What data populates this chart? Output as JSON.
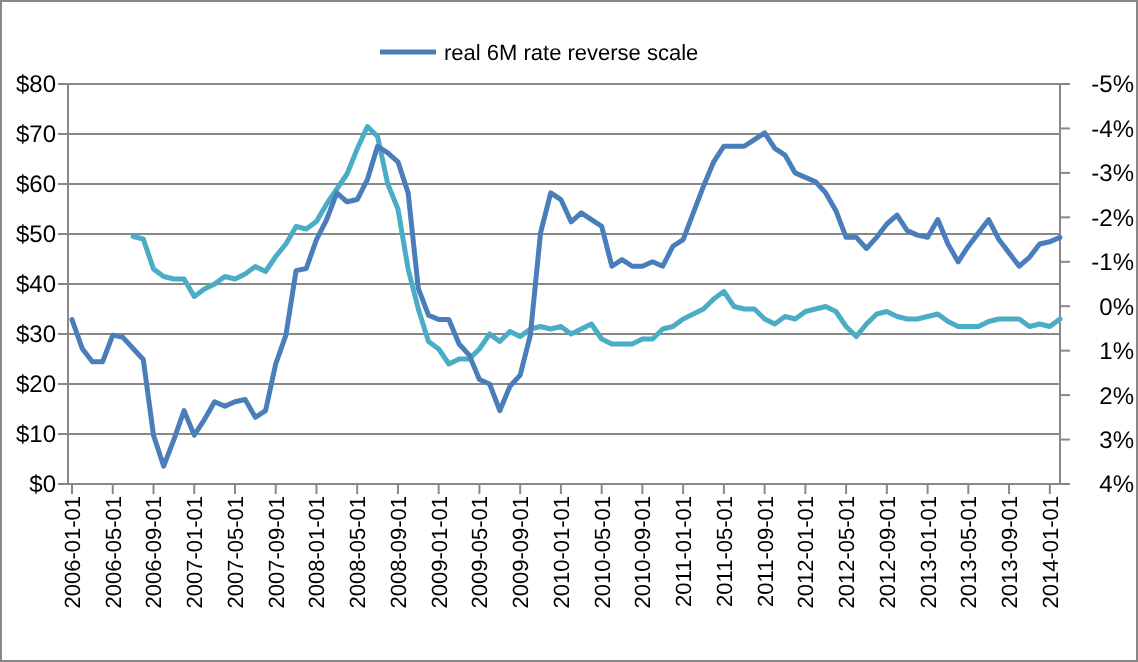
{
  "chart_data": {
    "type": "line",
    "categories": [
      "2006-01-01",
      null,
      null,
      null,
      "2006-05-01",
      null,
      null,
      null,
      "2006-09-01",
      null,
      null,
      null,
      "2007-01-01",
      null,
      null,
      null,
      "2007-05-01",
      null,
      null,
      null,
      "2007-09-01",
      null,
      null,
      null,
      "2008-01-01",
      null,
      null,
      null,
      "2008-05-01",
      null,
      null,
      null,
      "2008-09-01",
      null,
      null,
      null,
      "2009-01-01",
      null,
      null,
      null,
      "2009-05-01",
      null,
      null,
      null,
      "2009-09-01",
      null,
      null,
      null,
      "2010-01-01",
      null,
      null,
      null,
      "2010-05-01",
      null,
      null,
      null,
      "2010-09-01",
      null,
      null,
      null,
      "2011-01-01",
      null,
      null,
      null,
      "2011-05-01",
      null,
      null,
      null,
      "2011-09-01",
      null,
      null,
      null,
      "2012-01-01",
      null,
      null,
      null,
      "2012-05-01",
      null,
      null,
      null,
      "2012-09-01",
      null,
      null,
      null,
      "2013-01-01",
      null,
      null,
      null,
      "2013-05-01",
      null,
      null,
      null,
      "2013-09-01",
      null,
      null,
      null,
      "2014-01-01",
      null
    ],
    "series": [
      {
        "color": "#4bacc6",
        "values": [
          null,
          null,
          null,
          null,
          null,
          null,
          49.5,
          49,
          43,
          41.5,
          41,
          41,
          37.5,
          39,
          40,
          41.5,
          41,
          42,
          43.5,
          42.5,
          45.5,
          48,
          51.5,
          51,
          52.5,
          56,
          59,
          62,
          67,
          71.5,
          69.5,
          60,
          55,
          43,
          35,
          28.5,
          27,
          24,
          25,
          25,
          27,
          30,
          28.5,
          30.5,
          29.5,
          31,
          31.5,
          31,
          31.5,
          30,
          31,
          32,
          29,
          28,
          28,
          28,
          29,
          29,
          31,
          31.5,
          33,
          34,
          35,
          37,
          38.5,
          35.5,
          35,
          35,
          33,
          32,
          33.5,
          33,
          34.5,
          35,
          35.5,
          34.5,
          31.5,
          29.5,
          32,
          34,
          34.5,
          33.5,
          33,
          33,
          33.5,
          34,
          32.5,
          31.5,
          31.5,
          31.5,
          32.5,
          33,
          33,
          33,
          31.5,
          32,
          31.5,
          33
        ]
      },
      {
        "name": "real 6M rate reverse scale",
        "color": "#4a7ebb",
        "axis": "y2",
        "values": [
          0.3,
          0.95,
          1.25,
          1.25,
          0.65,
          0.7,
          0.95,
          1.2,
          2.9,
          3.6,
          3,
          2.35,
          2.9,
          2.55,
          2.15,
          2.25,
          2.15,
          2.1,
          2.5,
          2.35,
          1.3,
          0.65,
          -0.8,
          -0.85,
          -1.5,
          -1.95,
          -2.55,
          -2.35,
          -2.4,
          -2.85,
          -3.6,
          -3.45,
          -3.25,
          -2.55,
          -0.4,
          0.2,
          0.3,
          0.3,
          0.85,
          1.1,
          1.65,
          1.75,
          2.35,
          1.8,
          1.55,
          0.65,
          -1.65,
          -2.55,
          -2.4,
          -1.9,
          -2.1,
          -1.95,
          -1.8,
          -0.9,
          -1.05,
          -0.9,
          -0.9,
          -1,
          -0.9,
          -1.35,
          -1.5,
          -2.1,
          -2.7,
          -3.25,
          -3.6,
          -3.6,
          -3.6,
          -3.75,
          -3.9,
          -3.55,
          -3.4,
          -3,
          -2.9,
          -2.8,
          -2.55,
          -2.15,
          -1.55,
          -1.55,
          -1.3,
          -1.55,
          -1.85,
          -2.05,
          -1.7,
          -1.6,
          -1.55,
          -1.95,
          -1.4,
          -1,
          -1.35,
          -1.65,
          -1.95,
          -1.5,
          -1.2,
          -0.9,
          -1.1,
          -1.4,
          -1.45,
          -1.55
        ]
      }
    ],
    "ylim": [
      0,
      80
    ],
    "yticks": [
      {
        "value": 0,
        "label": "$0"
      },
      {
        "value": 10,
        "label": "$10"
      },
      {
        "value": 20,
        "label": "$20"
      },
      {
        "value": 30,
        "label": "$30"
      },
      {
        "value": 40,
        "label": "$40"
      },
      {
        "value": 50,
        "label": "$50"
      },
      {
        "value": 60,
        "label": "$60"
      },
      {
        "value": 70,
        "label": "$70"
      },
      {
        "value": 80,
        "label": "$80"
      }
    ],
    "y2lim": [
      4,
      -5
    ],
    "y2ticks": [
      {
        "value": -5,
        "label": "-5%"
      },
      {
        "value": -4,
        "label": "-4%"
      },
      {
        "value": -3,
        "label": "-3%"
      },
      {
        "value": -2,
        "label": "-2%"
      },
      {
        "value": -1,
        "label": "-1%"
      },
      {
        "value": 0,
        "label": "0%"
      },
      {
        "value": 1,
        "label": "1%"
      },
      {
        "value": 2,
        "label": "2%"
      },
      {
        "value": 3,
        "label": "3%"
      },
      {
        "value": 4,
        "label": "4%"
      }
    ],
    "grid": "y",
    "legend": "top"
  }
}
